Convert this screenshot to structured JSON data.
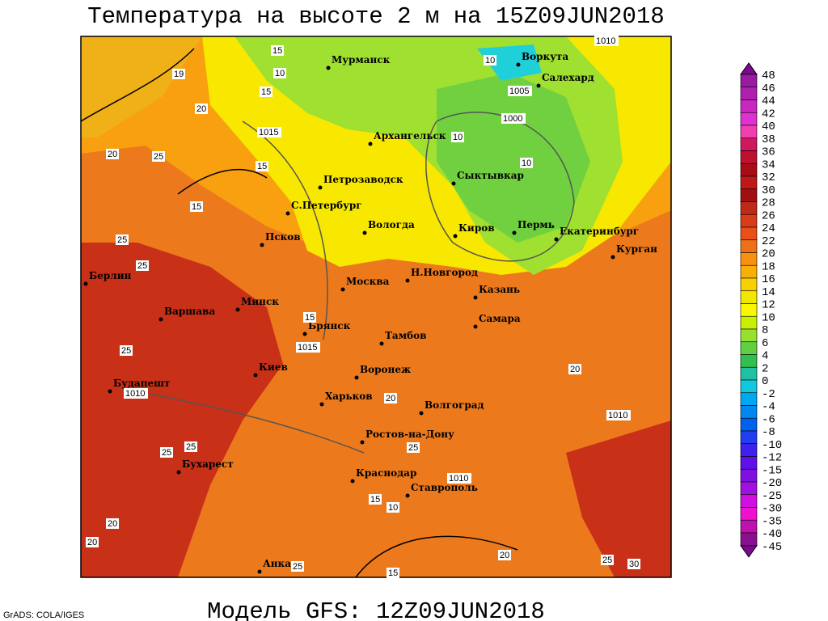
{
  "header": {
    "title": "Температура на высоте 2 м на 15Z09JUN2018"
  },
  "map": {
    "cities": [
      "Мурманск",
      "Воркута",
      "Салехард",
      "Архангельск",
      "Петрозаводск",
      "Сыктывкар",
      "С.Петербург",
      "Вологда",
      "Киров",
      "Пермь",
      "Екатеринбург",
      "Курган",
      "Псков",
      "Берлин",
      "Н.Новгород",
      "Москва",
      "Казань",
      "Варшава",
      "Минск",
      "Самара",
      "Брянск",
      "Тамбов",
      "Киев",
      "Воронеж",
      "Будапешт",
      "Харьков",
      "Волгоград",
      "Ростов-на-Дону",
      "Бухарест",
      "Краснодар",
      "Ставрополь",
      "Анкара"
    ],
    "isobar_labels": [
      "1010",
      "1005",
      "1000",
      "1015",
      "1015",
      "1010",
      "1010",
      "1010"
    ],
    "temperature_labels": [
      "15",
      "10",
      "19",
      "20",
      "20",
      "25",
      "15",
      "15",
      "10",
      "10",
      "10",
      "15",
      "25",
      "25",
      "15",
      "25",
      "20",
      "25",
      "25",
      "25",
      "20",
      "20",
      "15",
      "10",
      "20",
      "25",
      "30",
      "20",
      "25",
      "15"
    ]
  },
  "legend": {
    "labels": [
      "48",
      "46",
      "44",
      "42",
      "40",
      "38",
      "36",
      "34",
      "32",
      "30",
      "28",
      "26",
      "24",
      "22",
      "20",
      "18",
      "16",
      "14",
      "12",
      "10",
      "8",
      "6",
      "4",
      "2",
      "0",
      "-2",
      "-4",
      "-6",
      "-8",
      "-10",
      "-12",
      "-15",
      "-20",
      "-25",
      "-30",
      "-35",
      "-40",
      "-45"
    ]
  },
  "footer": {
    "model": "Модель GFS: 12Z09JUN2018",
    "credit": "GrADS: COLA/IGES"
  }
}
